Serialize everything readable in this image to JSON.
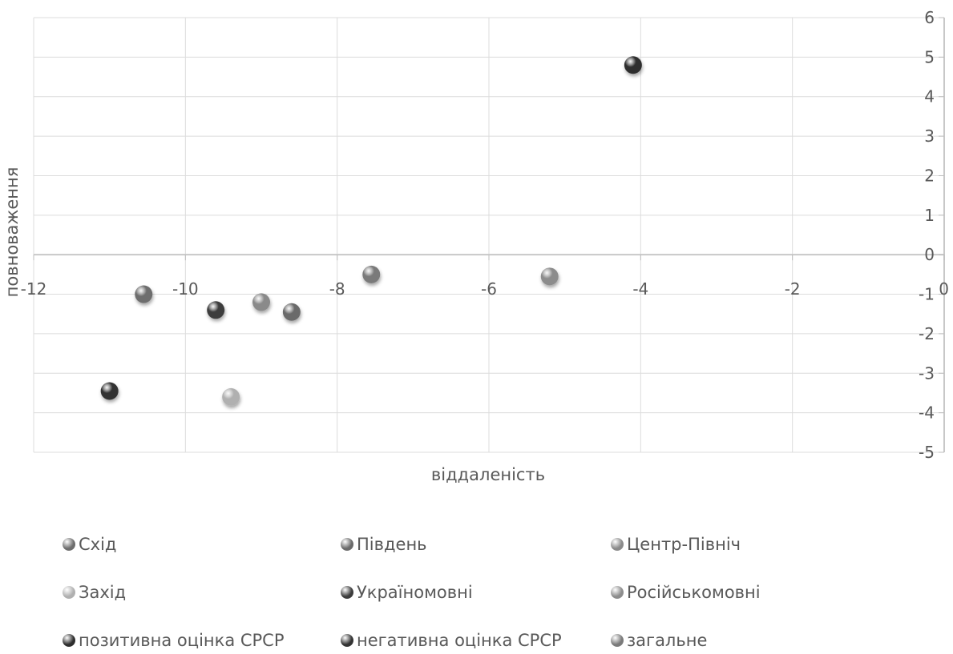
{
  "chart_data": {
    "type": "scatter",
    "xlabel": "віддаленість",
    "ylabel": "повноваження",
    "xlim": [
      -12,
      0
    ],
    "ylim": [
      -5,
      6
    ],
    "x_ticks": [
      "-12",
      "-10",
      "-8",
      "-6",
      "-4",
      "-2",
      "0"
    ],
    "y_ticks": [
      "6",
      "5",
      "4",
      "3",
      "2",
      "1",
      "0",
      "-1",
      "-2",
      "-3",
      "-4",
      "-5"
    ],
    "grid": true,
    "legend_position": "bottom",
    "series": [
      {
        "name": "Схід",
        "color": "#6e6e6e",
        "points": [
          {
            "x": -10.55,
            "y": -1.0
          }
        ]
      },
      {
        "name": "Південь",
        "color": "#6a6a6a",
        "points": [
          {
            "x": -8.6,
            "y": -1.45
          }
        ]
      },
      {
        "name": "Центр-Північ",
        "color": "#8a8a8a",
        "points": [
          {
            "x": -9.0,
            "y": -1.2
          }
        ]
      },
      {
        "name": "Захід",
        "color": "#b0b0b0",
        "points": [
          {
            "x": -9.4,
            "y": -3.6
          }
        ]
      },
      {
        "name": "Україномовні",
        "color": "#3c3c3c",
        "points": [
          {
            "x": -9.6,
            "y": -1.4
          }
        ]
      },
      {
        "name": "Російськомовні",
        "color": "#8c8c8c",
        "points": [
          {
            "x": -5.2,
            "y": -0.55
          }
        ]
      },
      {
        "name": "позитивна оцінка СРСР",
        "color": "#2e2e2e",
        "points": [
          {
            "x": -4.1,
            "y": 4.8
          }
        ]
      },
      {
        "name": "негативна оцінка СРСР",
        "color": "#333333",
        "points": [
          {
            "x": -11.0,
            "y": -3.45
          }
        ]
      },
      {
        "name": "загальне",
        "color": "#7a7a7a",
        "points": [
          {
            "x": -7.55,
            "y": -0.5
          }
        ]
      }
    ]
  }
}
